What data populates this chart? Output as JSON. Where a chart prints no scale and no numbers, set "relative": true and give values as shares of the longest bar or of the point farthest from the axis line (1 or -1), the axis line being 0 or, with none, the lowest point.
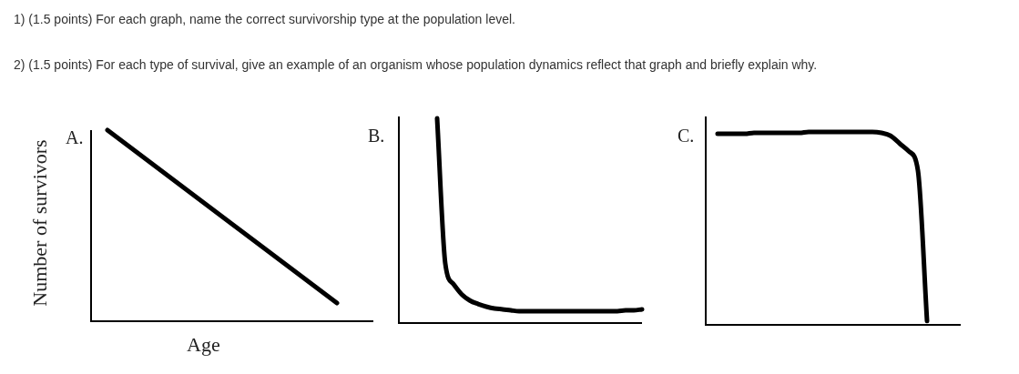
{
  "chart_data": [
    {
      "type": "line",
      "annotations": [
        "1) (1.5 points) For each graph, name the correct survivorship type at the population level.",
        "2) (1.5 points) For each type of survival, give an example of an organism whose population dynamics reflect that graph and briefly explain why."
      ],
      "title": "A.",
      "xlabel": "Age",
      "ylabel": "Number of survivors",
      "relative": true,
      "categories": [
        null,
        null
      ],
      "series": [
        {
          "color": "#000000",
          "values": [
            1,
            0.095
          ]
        }
      ]
    },
    {
      "type": "line",
      "title": "B.",
      "relative": true,
      "categories": [
        null,
        null,
        null,
        null,
        null,
        null,
        null,
        null,
        null,
        null,
        null,
        null,
        null,
        null,
        null,
        null,
        null,
        null,
        null,
        null,
        null,
        null,
        null,
        null,
        null,
        null
      ],
      "series": [
        {
          "color": "#000000",
          "values": [
            1,
            0.29,
            0.19,
            0.14,
            0.11,
            0.093,
            0.08,
            0.071,
            0.067,
            0.062,
            0.058,
            0.058,
            0.058,
            0.058,
            0.058,
            0.058,
            0.058,
            0.058,
            0.058,
            0.058,
            0.058,
            0.058,
            0.058,
            0.062,
            0.062,
            0.067
          ]
        }
      ]
    },
    {
      "type": "line",
      "title": "C.",
      "relative": true,
      "categories": [
        null,
        null,
        null,
        null,
        null,
        null,
        null,
        null,
        null,
        null,
        null,
        null,
        null,
        null,
        null,
        null,
        null,
        null,
        null,
        null,
        null,
        null,
        null,
        null
      ],
      "series": [
        {
          "color": "#000000",
          "values": [
            0.99,
            0.99,
            0.99,
            0.99,
            0.995,
            0.995,
            0.995,
            0.995,
            0.995,
            0.995,
            1,
            1,
            1,
            1,
            1,
            1,
            1,
            1,
            0.995,
            0.98,
            0.94,
            0.9,
            0.8,
            0.02
          ]
        }
      ]
    }
  ]
}
